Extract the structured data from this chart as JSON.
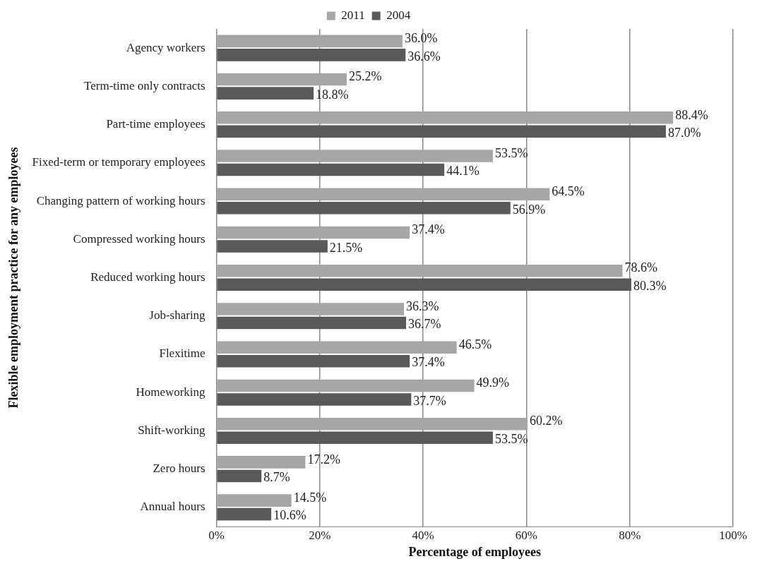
{
  "chart_data": {
    "type": "bar",
    "orientation": "horizontal",
    "xlabel": "Percentage of employees",
    "ylabel": "Flexible employment practice for any employees",
    "categories": [
      "Agency workers",
      "Term-time only contracts",
      "Part-time employees",
      "Fixed-term or temporary employees",
      "Changing pattern of working hours",
      "Compressed working hours",
      "Reduced working hours",
      "Job-sharing",
      "Flexitime",
      "Homeworking",
      "Shift-working",
      "Zero hours",
      "Annual hours"
    ],
    "series": [
      {
        "name": "2011",
        "color": "#a6a6a6",
        "values": [
          36.0,
          25.2,
          88.4,
          53.5,
          64.5,
          37.4,
          78.6,
          36.3,
          46.5,
          49.9,
          60.2,
          17.2,
          14.5
        ],
        "value_labels": [
          "36.0%",
          "25.2%",
          "88.4%",
          "53.5%",
          "64.5%",
          "37.4%",
          "78.6%",
          "36.3%",
          "46.5%",
          "49.9%",
          "60.2%",
          "17.2%",
          "14.5%"
        ]
      },
      {
        "name": "2004",
        "color": "#595959",
        "values": [
          36.6,
          18.8,
          87.0,
          44.1,
          56.9,
          21.5,
          80.3,
          36.7,
          37.4,
          37.7,
          53.5,
          8.7,
          10.6
        ],
        "value_labels": [
          "36.6%",
          "18.8%",
          "87.0%",
          "44.1%",
          "56.9%",
          "21.5%",
          "80.3%",
          "36.7%",
          "37.4%",
          "37.7%",
          "53.5%",
          "8.7%",
          "10.6%"
        ]
      }
    ],
    "xlim": [
      0,
      100
    ],
    "xticks": [
      {
        "value": 0,
        "label": "0%"
      },
      {
        "value": 20,
        "label": "20%"
      },
      {
        "value": 40,
        "label": "40%"
      },
      {
        "value": 60,
        "label": "60%"
      },
      {
        "value": 80,
        "label": "80%"
      },
      {
        "value": 100,
        "label": "100%"
      }
    ],
    "grid": "x",
    "legend": "top"
  }
}
